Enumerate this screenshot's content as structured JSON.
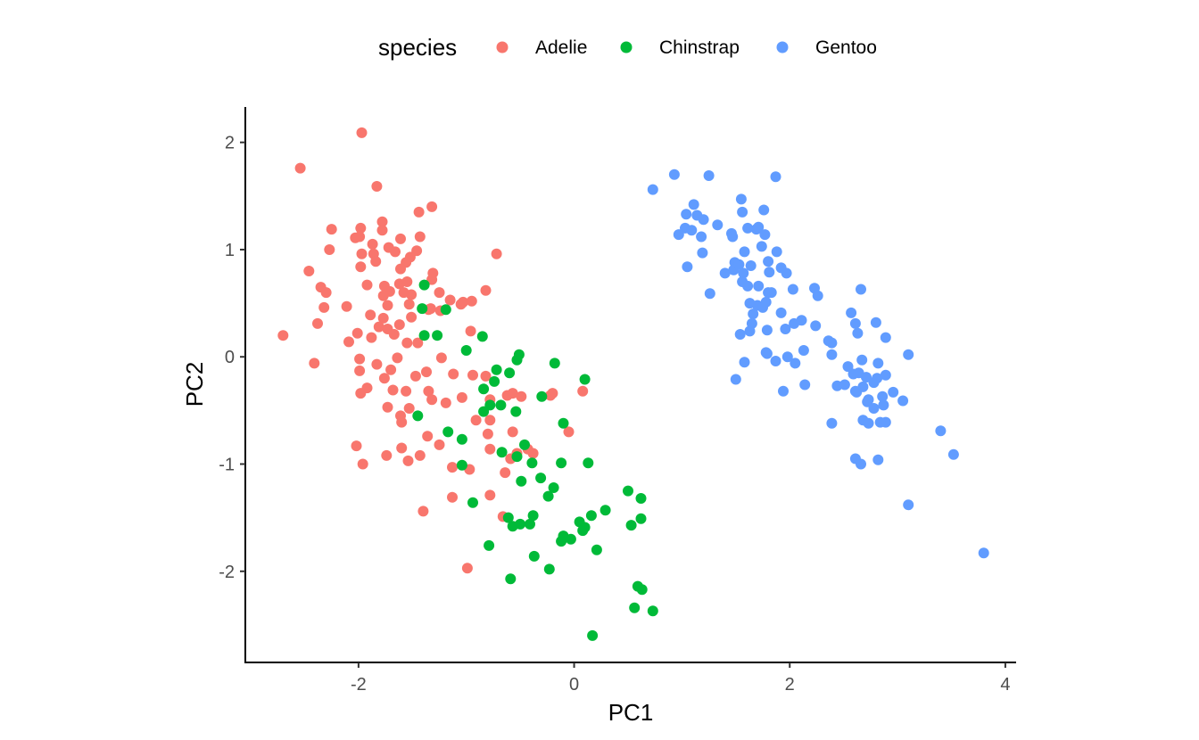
{
  "chart_data": {
    "type": "scatter",
    "xlabel": "PC1",
    "ylabel": "PC2",
    "xlim": [
      -3.05,
      4.1
    ],
    "ylim": [
      -2.85,
      2.33
    ],
    "x_ticks": [
      -2,
      0,
      2,
      4
    ],
    "y_ticks": [
      -2,
      -1,
      0,
      1,
      2
    ],
    "x_tick_labels": [
      "-2",
      "0",
      "2",
      "4"
    ],
    "y_tick_labels": [
      "-2",
      "-1",
      "0",
      "1",
      "2"
    ],
    "grid": false,
    "legend": {
      "title": "species",
      "position": "top",
      "entries": [
        "Adelie",
        "Chinstrap",
        "Gentoo"
      ]
    },
    "series": [
      {
        "name": "Adelie",
        "color": "#F8766D",
        "points": [
          [
            -1.97,
            2.09
          ],
          [
            -2.54,
            1.76
          ],
          [
            -1.83,
            1.59
          ],
          [
            -1.44,
            1.35
          ],
          [
            -1.32,
            1.4
          ],
          [
            -2.25,
            1.19
          ],
          [
            -1.98,
            1.2
          ],
          [
            -1.78,
            1.26
          ],
          [
            -1.78,
            1.18
          ],
          [
            -1.99,
            1.12
          ],
          [
            -2.03,
            1.11
          ],
          [
            -1.61,
            1.1
          ],
          [
            -1.43,
            1.12
          ],
          [
            -1.72,
            1.02
          ],
          [
            -1.87,
            1.05
          ],
          [
            -1.46,
            0.99
          ],
          [
            -1.66,
            0.98
          ],
          [
            -1.86,
            0.96
          ],
          [
            -1.97,
            0.96
          ],
          [
            -1.84,
            0.89
          ],
          [
            -2.27,
            1.0
          ],
          [
            -1.52,
            0.93
          ],
          [
            -1.56,
            0.88
          ],
          [
            -1.98,
            0.84
          ],
          [
            -2.46,
            0.8
          ],
          [
            -1.31,
            0.78
          ],
          [
            -1.61,
            0.82
          ],
          [
            -1.32,
            0.72
          ],
          [
            -1.76,
            0.66
          ],
          [
            -1.92,
            0.67
          ],
          [
            -2.35,
            0.65
          ],
          [
            -2.3,
            0.6
          ],
          [
            -1.62,
            0.68
          ],
          [
            -1.55,
            0.7
          ],
          [
            -1.58,
            0.6
          ],
          [
            -1.71,
            0.61
          ],
          [
            -1.77,
            0.57
          ],
          [
            -1.51,
            0.58
          ],
          [
            -1.25,
            0.6
          ],
          [
            -1.03,
            0.51
          ],
          [
            -0.95,
            0.52
          ],
          [
            -0.82,
            0.62
          ],
          [
            -0.72,
            0.96
          ],
          [
            -1.15,
            0.53
          ],
          [
            -1.24,
            0.43
          ],
          [
            -1.33,
            0.45
          ],
          [
            -1.53,
            0.49
          ],
          [
            -1.73,
            0.48
          ],
          [
            -2.11,
            0.47
          ],
          [
            -2.32,
            0.46
          ],
          [
            -1.89,
            0.39
          ],
          [
            -1.77,
            0.36
          ],
          [
            -1.51,
            0.37
          ],
          [
            -1.62,
            0.3
          ],
          [
            -1.35,
            0.44
          ],
          [
            -1.05,
            0.49
          ],
          [
            -1.81,
            0.28
          ],
          [
            -2.01,
            0.22
          ],
          [
            -2.38,
            0.31
          ],
          [
            -2.09,
            0.14
          ],
          [
            -1.73,
            0.26
          ],
          [
            -1.88,
            0.18
          ],
          [
            -1.67,
            0.21
          ],
          [
            -1.55,
            0.13
          ],
          [
            -2.7,
            0.2
          ],
          [
            -2.41,
            -0.06
          ],
          [
            -1.99,
            -0.02
          ],
          [
            -1.64,
            -0.01
          ],
          [
            -1.45,
            0.13
          ],
          [
            -1.23,
            -0.01
          ],
          [
            -0.96,
            0.24
          ],
          [
            -1.83,
            -0.07
          ],
          [
            -1.99,
            -0.13
          ],
          [
            -1.7,
            -0.12
          ],
          [
            -1.37,
            -0.14
          ],
          [
            -1.12,
            -0.16
          ],
          [
            -0.94,
            -0.17
          ],
          [
            -0.82,
            -0.18
          ],
          [
            -1.47,
            -0.18
          ],
          [
            -1.76,
            -0.2
          ],
          [
            -1.92,
            -0.29
          ],
          [
            -1.68,
            -0.31
          ],
          [
            -1.56,
            -0.32
          ],
          [
            -1.35,
            -0.32
          ],
          [
            -1.04,
            -0.38
          ],
          [
            -0.78,
            -0.4
          ],
          [
            -0.57,
            -0.34
          ],
          [
            -0.62,
            -0.36
          ],
          [
            -0.49,
            -0.37
          ],
          [
            -0.22,
            -0.36
          ],
          [
            -0.2,
            -0.34
          ],
          [
            0.08,
            -0.32
          ],
          [
            -1.19,
            -0.43
          ],
          [
            -1.32,
            -0.4
          ],
          [
            -1.53,
            -0.48
          ],
          [
            -1.98,
            -0.34
          ],
          [
            -1.6,
            -0.61
          ],
          [
            -1.73,
            -0.47
          ],
          [
            -1.61,
            -0.55
          ],
          [
            -0.78,
            -0.59
          ],
          [
            -0.91,
            -0.59
          ],
          [
            -1.36,
            -0.74
          ],
          [
            -1.6,
            -0.85
          ],
          [
            -1.74,
            -0.92
          ],
          [
            -2.02,
            -0.83
          ],
          [
            -1.96,
            -1.0
          ],
          [
            -1.43,
            -0.92
          ],
          [
            -1.54,
            -0.97
          ],
          [
            -1.25,
            -0.82
          ],
          [
            -1.13,
            -1.03
          ],
          [
            -0.97,
            -1.05
          ],
          [
            -0.78,
            -0.86
          ],
          [
            -0.8,
            -0.72
          ],
          [
            -0.57,
            -0.7
          ],
          [
            -0.53,
            -0.9
          ],
          [
            -0.38,
            -0.9
          ],
          [
            -0.64,
            -1.08
          ],
          [
            -0.59,
            -0.95
          ],
          [
            -1.13,
            -1.31
          ],
          [
            -0.78,
            -1.29
          ],
          [
            -1.4,
            -1.44
          ],
          [
            -0.66,
            -1.49
          ],
          [
            -0.99,
            -1.97
          ],
          [
            -0.05,
            -0.7
          ],
          [
            -0.43,
            -0.86
          ]
        ]
      },
      {
        "name": "Chinstrap",
        "color": "#00BA38",
        "points": [
          [
            -1.39,
            0.67
          ],
          [
            -1.41,
            0.45
          ],
          [
            -1.19,
            0.44
          ],
          [
            -1.27,
            0.2
          ],
          [
            -1.39,
            0.2
          ],
          [
            -0.85,
            0.19
          ],
          [
            -1.0,
            0.06
          ],
          [
            -0.51,
            0.02
          ],
          [
            -0.53,
            -0.03
          ],
          [
            -0.18,
            -0.06
          ],
          [
            -0.72,
            -0.12
          ],
          [
            -0.6,
            -0.15
          ],
          [
            -0.74,
            -0.23
          ],
          [
            -0.84,
            -0.3
          ],
          [
            -0.78,
            -0.45
          ],
          [
            -0.54,
            -0.51
          ],
          [
            -0.3,
            -0.37
          ],
          [
            0.1,
            -0.21
          ],
          [
            -0.84,
            -0.51
          ],
          [
            -0.68,
            -0.45
          ],
          [
            -1.45,
            -0.55
          ],
          [
            -1.17,
            -0.7
          ],
          [
            -1.04,
            -0.77
          ],
          [
            -0.67,
            -0.89
          ],
          [
            -0.46,
            -0.82
          ],
          [
            -0.53,
            -0.93
          ],
          [
            -0.39,
            -0.99
          ],
          [
            -0.1,
            -0.62
          ],
          [
            -0.12,
            -0.99
          ],
          [
            0.13,
            -0.99
          ],
          [
            -1.04,
            -1.01
          ],
          [
            -0.49,
            -1.16
          ],
          [
            -0.31,
            -1.13
          ],
          [
            -0.19,
            -1.22
          ],
          [
            -0.24,
            -1.3
          ],
          [
            -0.94,
            -1.36
          ],
          [
            -0.61,
            -1.5
          ],
          [
            -0.38,
            -1.48
          ],
          [
            -0.5,
            -1.56
          ],
          [
            -0.57,
            -1.58
          ],
          [
            -0.41,
            -1.56
          ],
          [
            -0.12,
            -1.72
          ],
          [
            -0.1,
            -1.67
          ],
          [
            0.05,
            -1.54
          ],
          [
            0.1,
            -1.59
          ],
          [
            0.16,
            -1.48
          ],
          [
            0.29,
            -1.43
          ],
          [
            -0.79,
            -1.76
          ],
          [
            -0.37,
            -1.86
          ],
          [
            -0.03,
            -1.7
          ],
          [
            0.08,
            -1.62
          ],
          [
            0.21,
            -1.8
          ],
          [
            -0.23,
            -1.98
          ],
          [
            -0.59,
            -2.07
          ],
          [
            0.5,
            -1.25
          ],
          [
            0.62,
            -1.32
          ],
          [
            0.53,
            -1.57
          ],
          [
            0.62,
            -1.51
          ],
          [
            0.59,
            -2.14
          ],
          [
            0.63,
            -2.17
          ],
          [
            0.56,
            -2.34
          ],
          [
            0.73,
            -2.37
          ],
          [
            0.17,
            -2.6
          ]
        ]
      },
      {
        "name": "Gentoo",
        "color": "#619CFF",
        "points": [
          [
            0.73,
            1.56
          ],
          [
            0.93,
            1.7
          ],
          [
            1.25,
            1.69
          ],
          [
            1.87,
            1.68
          ],
          [
            1.11,
            1.42
          ],
          [
            1.04,
            1.33
          ],
          [
            1.14,
            1.32
          ],
          [
            1.2,
            1.28
          ],
          [
            1.33,
            1.23
          ],
          [
            1.55,
            1.47
          ],
          [
            1.56,
            1.35
          ],
          [
            1.76,
            1.37
          ],
          [
            1.71,
            1.21
          ],
          [
            1.03,
            1.2
          ],
          [
            1.09,
            1.18
          ],
          [
            0.97,
            1.14
          ],
          [
            1.18,
            1.12
          ],
          [
            1.46,
            1.15
          ],
          [
            1.47,
            1.12
          ],
          [
            1.61,
            1.2
          ],
          [
            1.69,
            1.19
          ],
          [
            1.77,
            1.14
          ],
          [
            1.74,
            1.03
          ],
          [
            1.58,
            0.98
          ],
          [
            1.8,
            0.89
          ],
          [
            1.88,
            0.98
          ],
          [
            1.92,
            0.83
          ],
          [
            1.81,
            0.79
          ],
          [
            1.97,
            0.78
          ],
          [
            1.19,
            0.97
          ],
          [
            1.05,
            0.84
          ],
          [
            1.4,
            0.78
          ],
          [
            1.48,
            0.81
          ],
          [
            1.49,
            0.88
          ],
          [
            1.53,
            0.86
          ],
          [
            1.57,
            0.78
          ],
          [
            1.64,
            0.85
          ],
          [
            1.56,
            0.7
          ],
          [
            1.61,
            0.66
          ],
          [
            1.71,
            0.66
          ],
          [
            1.26,
            0.59
          ],
          [
            1.8,
            0.6
          ],
          [
            1.83,
            0.6
          ],
          [
            2.03,
            0.63
          ],
          [
            2.23,
            0.64
          ],
          [
            2.26,
            0.57
          ],
          [
            1.7,
            0.48
          ],
          [
            1.75,
            0.46
          ],
          [
            1.63,
            0.5
          ],
          [
            1.66,
            0.4
          ],
          [
            1.78,
            0.51
          ],
          [
            1.92,
            0.41
          ],
          [
            2.11,
            0.34
          ],
          [
            2.04,
            0.31
          ],
          [
            1.65,
            0.31
          ],
          [
            1.79,
            0.25
          ],
          [
            1.96,
            0.26
          ],
          [
            2.24,
            0.29
          ],
          [
            2.57,
            0.41
          ],
          [
            2.61,
            0.31
          ],
          [
            2.8,
            0.32
          ],
          [
            2.66,
            0.63
          ],
          [
            2.63,
            0.22
          ],
          [
            1.63,
            0.24
          ],
          [
            1.54,
            0.21
          ],
          [
            2.13,
            0.06
          ],
          [
            2.36,
            0.15
          ],
          [
            2.39,
            0.13
          ],
          [
            2.89,
            0.18
          ],
          [
            1.79,
            0.03
          ],
          [
            1.87,
            -0.04
          ],
          [
            1.98,
            0.0
          ],
          [
            1.78,
            0.04
          ],
          [
            1.58,
            -0.05
          ],
          [
            2.05,
            -0.06
          ],
          [
            2.39,
            0.02
          ],
          [
            2.54,
            -0.09
          ],
          [
            2.67,
            -0.03
          ],
          [
            2.82,
            -0.06
          ],
          [
            2.89,
            -0.17
          ],
          [
            3.1,
            0.02
          ],
          [
            2.64,
            -0.15
          ],
          [
            2.59,
            -0.16
          ],
          [
            2.71,
            -0.19
          ],
          [
            2.44,
            -0.27
          ],
          [
            2.61,
            -0.32
          ],
          [
            2.68,
            -0.28
          ],
          [
            2.78,
            -0.24
          ],
          [
            2.81,
            -0.2
          ],
          [
            2.62,
            -0.33
          ],
          [
            2.96,
            -0.33
          ],
          [
            3.05,
            -0.41
          ],
          [
            2.73,
            -0.4
          ],
          [
            2.72,
            -0.42
          ],
          [
            2.86,
            -0.37
          ],
          [
            1.5,
            -0.21
          ],
          [
            1.94,
            -0.32
          ],
          [
            2.14,
            -0.26
          ],
          [
            2.51,
            -0.26
          ],
          [
            2.68,
            -0.59
          ],
          [
            2.78,
            -0.48
          ],
          [
            2.87,
            -0.45
          ],
          [
            2.89,
            -0.61
          ],
          [
            2.39,
            -0.62
          ],
          [
            2.73,
            -0.62
          ],
          [
            2.84,
            -0.61
          ],
          [
            2.61,
            -0.95
          ],
          [
            2.66,
            -1.0
          ],
          [
            2.82,
            -0.96
          ],
          [
            3.4,
            -0.69
          ],
          [
            3.52,
            -0.91
          ],
          [
            3.1,
            -1.38
          ],
          [
            3.8,
            -1.83
          ]
        ]
      }
    ]
  }
}
